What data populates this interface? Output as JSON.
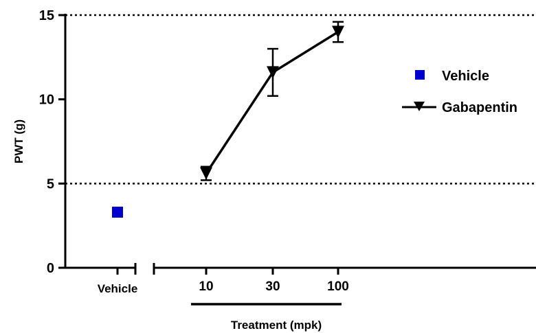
{
  "chart_data": {
    "type": "scatter",
    "title": "",
    "ylabel": "PWT (g)",
    "xlabel": "Treatment (mpk)",
    "ylim": [
      0,
      15
    ],
    "yticks": [
      0,
      5,
      10,
      15
    ],
    "x_categories": [
      "Vehicle",
      "10",
      "30",
      "100"
    ],
    "reference_lines": [
      5,
      15
    ],
    "series": [
      {
        "name": "Vehicle",
        "marker": "square",
        "color": "#0000CC",
        "points": [
          {
            "x": "Vehicle",
            "y": 3.3
          }
        ]
      },
      {
        "name": "Gabapentin",
        "marker": "triangle-down",
        "color": "#000000",
        "line": true,
        "points": [
          {
            "x": "10",
            "y": 5.6,
            "err": 0.4
          },
          {
            "x": "30",
            "y": 11.6,
            "err": 1.4
          },
          {
            "x": "100",
            "y": 14.0,
            "err": 0.6
          }
        ]
      }
    ],
    "legend": {
      "position": "right"
    },
    "grid": false
  }
}
